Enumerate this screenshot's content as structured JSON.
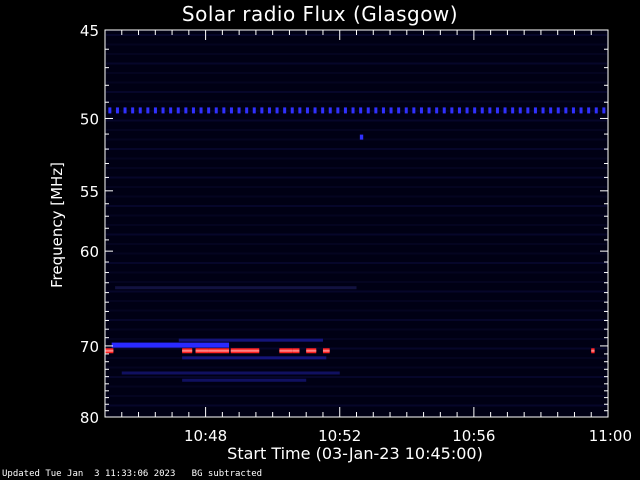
{
  "chart_data": {
    "type": "heatmap",
    "title": "Solar radio Flux (Glasgow)",
    "xlabel": "Start Time (03-Jan-23 10:45:00)",
    "ylabel": "Frequency [MHz]",
    "x_range_minutes": [
      0,
      15
    ],
    "x_ticks": [
      {
        "minute": 3,
        "label": "10:48"
      },
      {
        "minute": 7,
        "label": "10:52"
      },
      {
        "minute": 11,
        "label": "10:56"
      },
      {
        "minute": 15,
        "label": "11:00"
      }
    ],
    "y_range": [
      45,
      80
    ],
    "y_ticks": [
      {
        "value": 45,
        "label": "45"
      },
      {
        "value": 50,
        "label": "50"
      },
      {
        "value": 55,
        "label": "55"
      },
      {
        "value": 60,
        "label": "60"
      },
      {
        "value": 70,
        "label": "70"
      },
      {
        "value": 80,
        "label": "80"
      }
    ],
    "y_scale": "reciprocal",
    "colormap": [
      "#000014",
      "#0a0a3c",
      "#1414a0",
      "#2828ff",
      "#ff2020"
    ],
    "features": [
      {
        "name": "dotted-band-49.5",
        "freq": 49.5,
        "t_start": 0.1,
        "t_end": 14.9,
        "intensity": "medium",
        "color": "#3030ff",
        "dotted": true
      },
      {
        "name": "blip-51",
        "freq": 51.2,
        "t_start": 7.6,
        "t_end": 7.7,
        "intensity": "medium",
        "color": "#3030ff"
      },
      {
        "name": "faint-band-63",
        "freq": 63.5,
        "t_start": 0.3,
        "t_end": 7.5,
        "intensity": "low",
        "color": "#121240"
      },
      {
        "name": "band-69.3",
        "freq": 69.3,
        "t_start": 2.2,
        "t_end": 6.5,
        "intensity": "low",
        "color": "#14147a"
      },
      {
        "name": "band-70-blue",
        "freq": 69.9,
        "t_start": 0.2,
        "t_end": 3.7,
        "intensity": "medium",
        "color": "#2a2aff"
      },
      {
        "name": "red-line-70.6",
        "freq": 70.6,
        "segments": [
          [
            0.0,
            0.25
          ],
          [
            2.3,
            2.6
          ],
          [
            2.7,
            3.1
          ],
          [
            3.1,
            3.7
          ],
          [
            3.75,
            4.6
          ],
          [
            5.2,
            5.6
          ],
          [
            5.6,
            5.8
          ],
          [
            6.0,
            6.3
          ],
          [
            6.5,
            6.7
          ],
          [
            14.5,
            14.6
          ]
        ],
        "intensity": "high",
        "color": "#ff2020"
      },
      {
        "name": "band-71.5",
        "freq": 71.5,
        "t_start": 2.3,
        "t_end": 6.6,
        "intensity": "low",
        "color": "#14147a"
      },
      {
        "name": "band-73.5",
        "freq": 73.5,
        "t_start": 0.5,
        "t_end": 7.0,
        "intensity": "low",
        "color": "#101060"
      },
      {
        "name": "band-74.5",
        "freq": 74.5,
        "t_start": 2.3,
        "t_end": 6.0,
        "intensity": "low",
        "color": "#101060"
      }
    ]
  },
  "footer": "Updated Tue Jan  3 11:33:06 2023   BG subtracted"
}
